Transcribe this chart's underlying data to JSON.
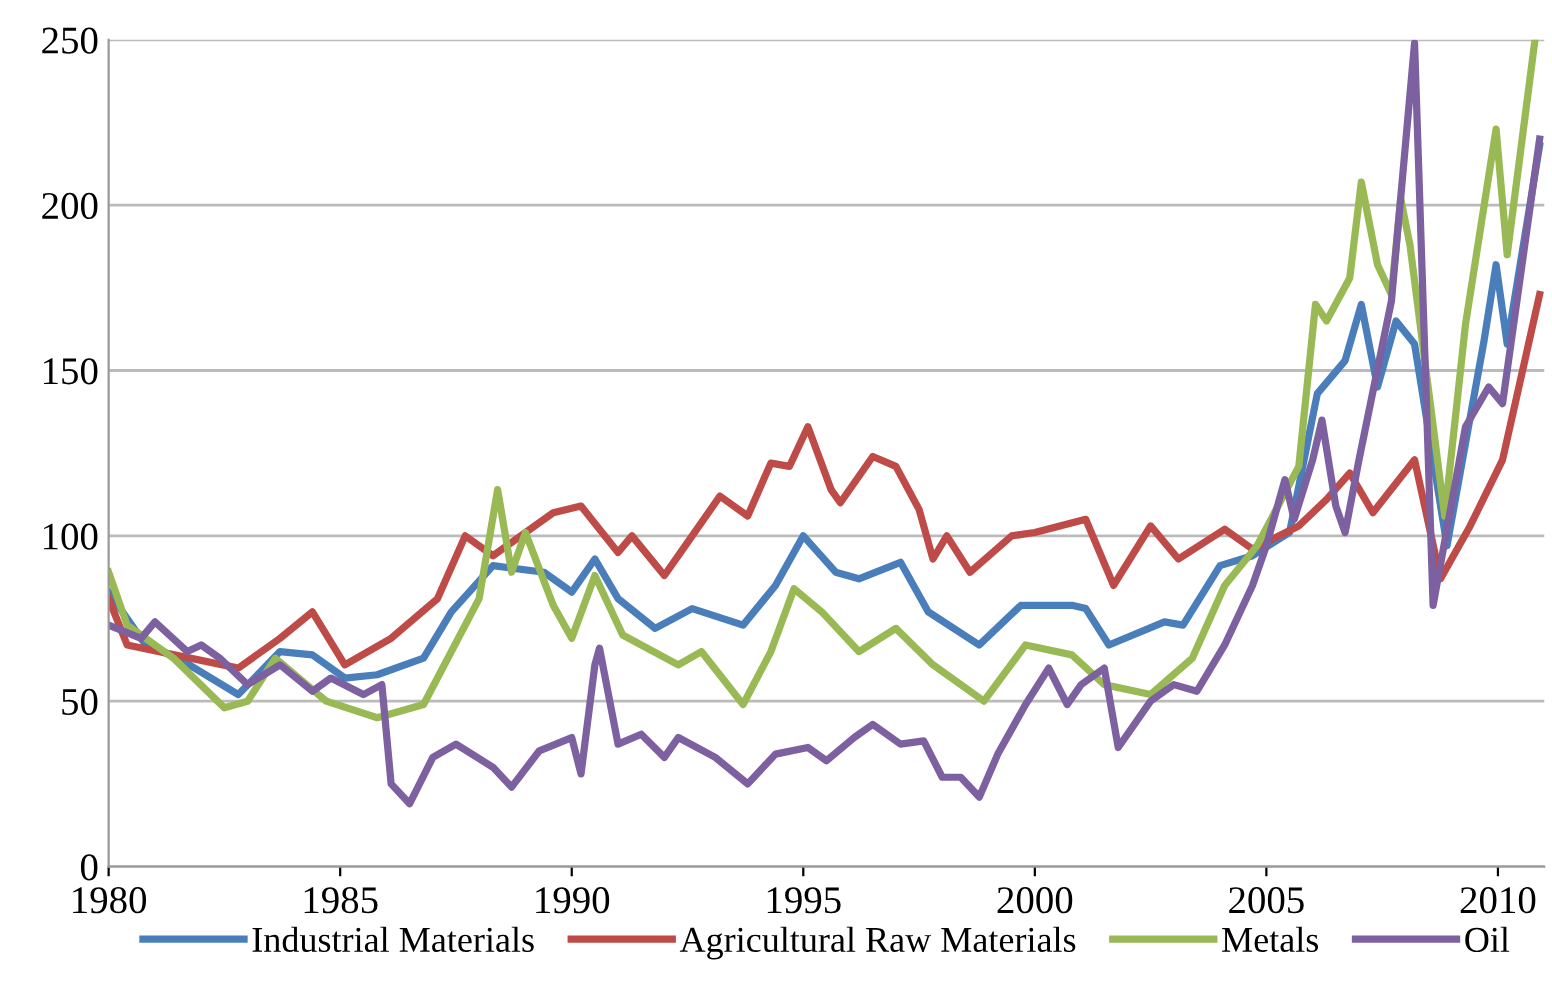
{
  "chart_data": {
    "type": "line",
    "xlim": [
      1980,
      2011
    ],
    "xticks": [
      1980,
      1985,
      1990,
      1995,
      2000,
      2005,
      2010
    ],
    "ylim": [
      0,
      250
    ],
    "yticks": [
      0,
      50,
      100,
      150,
      200,
      250
    ],
    "grid": "y",
    "legend": "bottom",
    "marker": "none",
    "line_style": "solid",
    "series": [
      {
        "name": "Industrial Materials",
        "color": "#4a7ebb",
        "x": [
          1980,
          1980.8,
          1981.5,
          1982.8,
          1983.7,
          1984.4,
          1985.1,
          1985.8,
          1986.8,
          1987.4,
          1988.3,
          1989.4,
          1990.0,
          1990.5,
          1991.0,
          1991.8,
          1992.6,
          1993.7,
          1994.4,
          1995.0,
          1995.7,
          1996.2,
          1997.1,
          1997.7,
          1998.8,
          1999.7,
          2000.8,
          2001.1,
          2001.6,
          2002.8,
          2003.2,
          2004.0,
          2004.7,
          2005.5,
          2006.1,
          2006.7,
          2007.05,
          2007.4,
          2007.8,
          2008.2,
          2008.9,
          2009.7,
          2009.96,
          2010.2,
          2010.9
        ],
        "values": [
          83,
          67,
          63,
          52,
          65,
          64,
          57,
          58,
          63,
          77,
          91,
          89,
          83,
          93,
          81,
          72,
          78,
          73,
          85,
          100,
          89,
          87,
          92,
          77,
          67,
          79,
          79,
          78,
          67,
          74,
          73,
          91,
          94,
          101,
          143,
          153,
          170,
          145,
          165,
          158,
          97,
          159,
          182,
          158,
          218
        ]
      },
      {
        "name": "Agricultural Raw Materials",
        "color": "#be4b48",
        "x": [
          1980,
          1980.4,
          1982.8,
          1983.7,
          1984.4,
          1985.1,
          1986.1,
          1987.1,
          1987.7,
          1988.3,
          1989.6,
          1990.2,
          1991.0,
          1991.3,
          1992.0,
          1992.4,
          1993.2,
          1993.8,
          1994.3,
          1994.7,
          1995.1,
          1995.6,
          1995.8,
          1996.5,
          1997.0,
          1997.5,
          1997.8,
          1998.1,
          1998.6,
          1999.5,
          2000.0,
          2001.1,
          2001.7,
          2002.5,
          2003.1,
          2004.1,
          2004.7,
          2005.7,
          2006.3,
          2006.8,
          2007.3,
          2008.2,
          2008.76,
          2009.4,
          2010.1,
          2010.9
        ],
        "values": [
          81,
          67,
          60,
          69,
          77,
          61,
          69,
          81,
          100,
          94,
          107,
          109,
          95,
          100,
          88,
          96,
          112,
          106,
          122,
          121,
          133,
          114,
          110,
          124,
          121,
          108,
          93,
          100,
          89,
          100,
          101,
          105,
          85,
          103,
          93,
          102,
          96,
          103,
          111,
          119,
          107,
          123,
          87,
          103,
          123,
          173
        ]
      },
      {
        "name": "Metals",
        "color": "#98b954",
        "x": [
          1980,
          1980.4,
          1981.4,
          1982.5,
          1983.0,
          1983.6,
          1984.7,
          1985.8,
          1986.8,
          1988.0,
          1988.4,
          1988.7,
          1989.0,
          1989.6,
          1990.0,
          1990.5,
          1991.1,
          1992.3,
          1992.8,
          1993.7,
          1994.3,
          1994.8,
          1995.4,
          1996.2,
          1997.0,
          1997.8,
          1998.9,
          1999.8,
          2000.8,
          2001.5,
          2002.5,
          2003.4,
          2004.1,
          2004.8,
          2005.7,
          2006.06,
          2006.3,
          2006.8,
          2007.05,
          2007.4,
          2007.7,
          2007.9,
          2008.1,
          2008.85,
          2009.3,
          2009.96,
          2010.2,
          2010.8
        ],
        "values": [
          89,
          73,
          63,
          48,
          50,
          63,
          50,
          45,
          49,
          81,
          114,
          89,
          101,
          79,
          69,
          88,
          70,
          61,
          65,
          49,
          65,
          84,
          77,
          65,
          72,
          61,
          50,
          67,
          64,
          55,
          52,
          63,
          85,
          97,
          121,
          170,
          165,
          178,
          207,
          182,
          173,
          202,
          188,
          106,
          164,
          223,
          185,
          250
        ]
      },
      {
        "name": "Oil",
        "color": "#7d60a0",
        "x": [
          1980,
          1980.7,
          1981.0,
          1981.7,
          1982.0,
          1982.4,
          1983.0,
          1983.7,
          1984.4,
          1984.8,
          1985.5,
          1985.9,
          1986.1,
          1986.5,
          1987.0,
          1987.5,
          1988.3,
          1988.7,
          1989.3,
          1990.0,
          1990.2,
          1990.5,
          1990.6,
          1991.0,
          1991.5,
          1992.0,
          1992.3,
          1993.1,
          1993.8,
          1994.4,
          1995.1,
          1995.5,
          1996.1,
          1996.5,
          1997.1,
          1997.6,
          1998.0,
          1998.4,
          1998.8,
          1999.2,
          1999.8,
          2000.3,
          2000.7,
          2001.0,
          2001.5,
          2001.8,
          2002.5,
          2003.0,
          2003.5,
          2004.1,
          2004.7,
          2005.0,
          2005.4,
          2005.6,
          2006.0,
          2006.2,
          2006.5,
          2006.7,
          2007.0,
          2007.7,
          2008.2,
          2008.6,
          2009.3,
          2009.8,
          2010.1,
          2010.9
        ],
        "values": [
          73,
          69,
          74,
          65,
          67,
          63,
          55,
          61,
          53,
          57,
          52,
          55,
          25,
          19,
          33,
          37,
          30,
          24,
          35,
          39,
          28,
          61,
          66,
          37,
          40,
          33,
          39,
          33,
          25,
          34,
          36,
          32,
          39,
          43,
          37,
          38,
          27,
          27,
          21,
          34,
          49,
          60,
          49,
          55,
          60,
          36,
          50,
          55,
          53,
          67,
          85,
          97,
          117,
          105,
          123,
          135,
          109,
          101,
          123,
          171,
          249,
          79,
          133,
          145,
          140,
          220
        ]
      }
    ]
  }
}
